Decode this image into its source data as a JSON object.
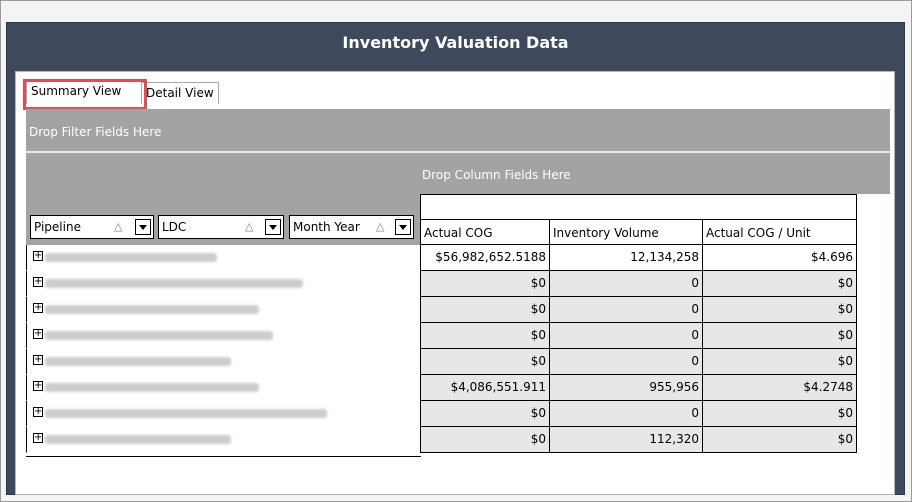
{
  "window": {
    "title": "Inventory Valuation Data"
  },
  "tabs": [
    {
      "label": "Summary View"
    },
    {
      "label": "Detail View"
    }
  ],
  "drop_zones": {
    "filter": "Drop Filter Fields Here",
    "column": "Drop Column Fields Here"
  },
  "row_fields": [
    {
      "label": "Pipeline"
    },
    {
      "label": "LDC"
    },
    {
      "label": "Month Year"
    }
  ],
  "columns": [
    "Actual COG",
    "Inventory Volume",
    "Actual COG / Unit"
  ],
  "rows": [
    {
      "expand": "+",
      "values": [
        "$56,982,652.5188",
        "12,134,258",
        "$4.696"
      ]
    },
    {
      "expand": "+",
      "values": [
        "$0",
        "0",
        "$0"
      ]
    },
    {
      "expand": "+",
      "values": [
        "$0",
        "0",
        "$0"
      ]
    },
    {
      "expand": "+",
      "values": [
        "$0",
        "0",
        "$0"
      ]
    },
    {
      "expand": "+",
      "values": [
        "$0",
        "0",
        "$0"
      ]
    },
    {
      "expand": "+",
      "values": [
        "$4,086,551.911",
        "955,956",
        "$4.2748"
      ]
    },
    {
      "expand": "+",
      "values": [
        "$0",
        "0",
        "$0"
      ]
    },
    {
      "expand": "+",
      "values": [
        "$0",
        "112,320",
        "$0"
      ]
    }
  ]
}
